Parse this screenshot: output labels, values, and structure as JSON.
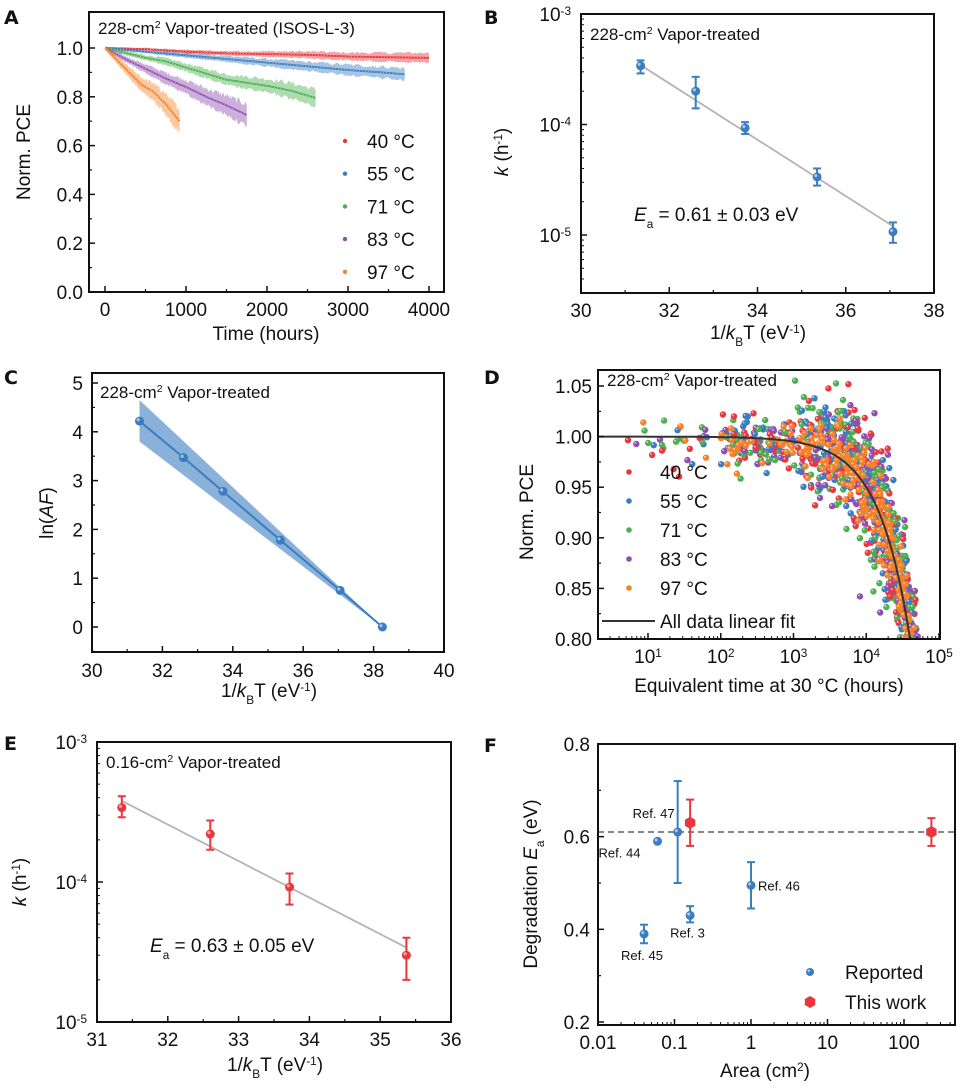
{
  "figure": {
    "colors": {
      "red": "#e8383d",
      "blue": "#3a7dc0",
      "green": "#4caf50",
      "purple": "#8e4fb0",
      "orange": "#f5822a",
      "fit_gray": "#b4b4b4",
      "fit_dark": "#333333",
      "band_blue": "#3a7dc0"
    }
  },
  "chart_data": [
    {
      "id": "A",
      "panel_letter": "A",
      "type": "line",
      "title": "228-cm² Vapor-treated (ISOS-L-3)",
      "title_parts": {
        "pre": "228-cm",
        "sup": "2",
        "post": " Vapor-treated (ISOS-L-3)"
      },
      "xlabel": "Time (hours)",
      "ylabel": "Norm. PCE",
      "xlim": [
        -200,
        4190
      ],
      "ylim": [
        0.0,
        1.15
      ],
      "xticks": [
        0,
        1000,
        2000,
        3000,
        4000
      ],
      "yticks": [
        0.0,
        0.2,
        0.4,
        0.6,
        0.8,
        1.0
      ],
      "ytick_labels": [
        "0.0",
        "0.2",
        "0.4",
        "0.6",
        "0.8",
        "1.0"
      ],
      "legend_position": "center-right",
      "series": [
        {
          "name": "40 °C",
          "color": "red",
          "x": [
            0,
            500,
            1000,
            1500,
            2000,
            2500,
            3000,
            3500,
            4000
          ],
          "y": [
            1.0,
            0.995,
            0.985,
            0.978,
            0.975,
            0.972,
            0.965,
            0.962,
            0.96
          ],
          "band": 0.02
        },
        {
          "name": "55 °C",
          "color": "blue",
          "x": [
            0,
            500,
            1000,
            1500,
            2000,
            2500,
            3000,
            3500,
            3700
          ],
          "y": [
            1.0,
            0.985,
            0.97,
            0.955,
            0.94,
            0.925,
            0.91,
            0.898,
            0.892
          ],
          "band": 0.025
        },
        {
          "name": "71 °C",
          "color": "green",
          "x": [
            0,
            250,
            500,
            750,
            1000,
            1250,
            1500,
            2000,
            2300,
            2600
          ],
          "y": [
            1.0,
            0.98,
            0.96,
            0.945,
            0.92,
            0.895,
            0.87,
            0.845,
            0.825,
            0.795
          ],
          "band": 0.035
        },
        {
          "name": "83 °C",
          "color": "purple",
          "x": [
            0,
            250,
            500,
            750,
            1000,
            1250,
            1500,
            1750
          ],
          "y": [
            1.0,
            0.955,
            0.915,
            0.875,
            0.84,
            0.8,
            0.765,
            0.725
          ],
          "band": 0.045
        },
        {
          "name": "97 °C",
          "color": "orange",
          "x": [
            0,
            150,
            300,
            450,
            600,
            750,
            920
          ],
          "y": [
            1.0,
            0.95,
            0.9,
            0.85,
            0.82,
            0.77,
            0.7
          ],
          "band": 0.05
        }
      ]
    },
    {
      "id": "B",
      "panel_letter": "B",
      "type": "scatter",
      "title": "228-cm² Vapor-treated",
      "title_parts": {
        "pre": "228-cm",
        "sup": "2",
        "post": " Vapor-treated"
      },
      "xlabel": "1/kBT (eV⁻¹)",
      "ylabel": "k (h⁻¹)",
      "yscale": "log",
      "xlim": [
        30,
        38
      ],
      "ylim": [
        3.3e-06,
        0.001
      ],
      "xticks": [
        30,
        32,
        34,
        36,
        38
      ],
      "yticks": [
        1e-05,
        0.0001,
        0.001
      ],
      "ytick_exponents": [
        "-5",
        "-4",
        "-3"
      ],
      "annotation": {
        "var": "E",
        "sub": "a",
        "text": " = 0.61 ± 0.03 eV"
      },
      "points": [
        {
          "x": 31.35,
          "y": 0.00034,
          "ylo": 0.00029,
          "yhi": 0.00038
        },
        {
          "x": 32.6,
          "y": 0.0002,
          "ylo": 0.00014,
          "yhi": 0.00027
        },
        {
          "x": 33.72,
          "y": 9.3e-05,
          "ylo": 8.2e-05,
          "yhi": 0.000105
        },
        {
          "x": 35.35,
          "y": 3.35e-05,
          "ylo": 2.8e-05,
          "yhi": 4e-05
        },
        {
          "x": 37.07,
          "y": 1.07e-05,
          "ylo": 8.5e-06,
          "yhi": 1.3e-05
        }
      ],
      "fit": {
        "x": [
          31.35,
          37.07
        ],
        "y": [
          0.000345,
          1.2e-05
        ]
      },
      "marker_color": "blue"
    },
    {
      "id": "C",
      "panel_letter": "C",
      "type": "line",
      "title": "228-cm² Vapor-treated",
      "title_parts": {
        "pre": "228-cm",
        "sup": "2",
        "post": " Vapor-treated"
      },
      "xlabel": "1/kBT (eV⁻¹)",
      "ylabel": "ln(AF)",
      "xlim": [
        30,
        40
      ],
      "ylim": [
        -0.5,
        5.2
      ],
      "xticks": [
        30,
        32,
        34,
        36,
        38,
        40
      ],
      "yticks": [
        0,
        1,
        2,
        3,
        4,
        5
      ],
      "points": [
        {
          "x": 31.35,
          "y": 4.22
        },
        {
          "x": 32.6,
          "y": 3.47
        },
        {
          "x": 33.72,
          "y": 2.78
        },
        {
          "x": 35.35,
          "y": 1.78
        },
        {
          "x": 37.05,
          "y": 0.75
        },
        {
          "x": 38.25,
          "y": 0.0
        }
      ],
      "band": {
        "x": [
          31.35,
          38.25
        ],
        "lo": [
          3.8,
          0.0
        ],
        "hi": [
          4.65,
          0.0
        ]
      },
      "marker_color": "blue"
    },
    {
      "id": "D",
      "panel_letter": "D",
      "type": "scatter",
      "title": "228-cm² Vapor-treated",
      "title_parts": {
        "pre": "228-cm",
        "sup": "2",
        "post": " Vapor-treated"
      },
      "xlabel": "Equivalent time at 30 °C (hours)",
      "ylabel": "Norm. PCE",
      "xscale": "log",
      "xlim": [
        2,
        100000
      ],
      "ylim": [
        0.8,
        1.065
      ],
      "xticks": [
        10,
        100,
        1000,
        10000,
        100000
      ],
      "xtick_exponents": [
        "1",
        "2",
        "3",
        "4",
        "5"
      ],
      "yticks": [
        0.8,
        0.85,
        0.9,
        0.95,
        1.0,
        1.05
      ],
      "ytick_labels": [
        "0.80",
        "0.85",
        "0.90",
        "0.95",
        "1.00",
        "1.05"
      ],
      "legend_position": "center-left",
      "series": [
        {
          "name": "40 °C",
          "color": "red"
        },
        {
          "name": "55 °C",
          "color": "blue"
        },
        {
          "name": "71 °C",
          "color": "green"
        },
        {
          "name": "83 °C",
          "color": "purple"
        },
        {
          "name": "97 °C",
          "color": "orange"
        }
      ],
      "fit": {
        "name": "All data linear fit",
        "model": "1 - slope * t",
        "slope": 5e-06
      },
      "scatter_description": "Points cluster near 1.0 from 10^2–10^3 h then fall along the fit to 0.80 near 4×10^4 h; spread ~±0.05."
    },
    {
      "id": "E",
      "panel_letter": "E",
      "type": "scatter",
      "title": "0.16-cm² Vapor-treated",
      "title_parts": {
        "pre": "0.16-cm",
        "sup": "2",
        "post": " Vapor-treated"
      },
      "xlabel": "1/kBT (eV⁻¹)",
      "ylabel": "k (h⁻¹)",
      "yscale": "log",
      "xlim": [
        31,
        36
      ],
      "ylim": [
        1e-05,
        0.001
      ],
      "xticks": [
        31,
        32,
        33,
        34,
        35,
        36
      ],
      "yticks": [
        1e-05,
        0.0001,
        0.001
      ],
      "ytick_exponents": [
        "-5",
        "-4",
        "-3"
      ],
      "annotation": {
        "var": "E",
        "sub": "a",
        "text": " = 0.63 ± 0.05 eV"
      },
      "points": [
        {
          "x": 31.35,
          "y": 0.00034,
          "ylo": 0.00029,
          "yhi": 0.00041
        },
        {
          "x": 32.6,
          "y": 0.00022,
          "ylo": 0.00017,
          "yhi": 0.000275
        },
        {
          "x": 33.72,
          "y": 9.2e-05,
          "ylo": 6.9e-05,
          "yhi": 0.000115
        },
        {
          "x": 35.37,
          "y": 3e-05,
          "ylo": 2e-05,
          "yhi": 4e-05
        }
      ],
      "fit": {
        "x": [
          31.35,
          35.37
        ],
        "y": [
          0.00038,
          3.4e-05
        ]
      },
      "marker_color": "red"
    },
    {
      "id": "F",
      "panel_letter": "F",
      "type": "scatter",
      "title": "",
      "xlabel": "Area (cm²)",
      "ylabel": "Degradation Ea (eV)",
      "xscale": "log",
      "xlim": [
        0.01,
        450
      ],
      "ylim": [
        0.2,
        0.8
      ],
      "xticks": [
        0.01,
        0.1,
        1,
        10,
        100
      ],
      "xtick_labels": [
        "0.01",
        "0.1",
        "1",
        "10",
        "100"
      ],
      "yticks": [
        0.2,
        0.4,
        0.6,
        0.8
      ],
      "ytick_labels": [
        "0.2",
        "0.4",
        "0.6",
        "0.8"
      ],
      "reference_line": {
        "y": 0.61,
        "style": "dashed"
      },
      "legend_position": "bottom-right",
      "series": [
        {
          "name": "Reported",
          "color": "blue",
          "marker": "circle",
          "points": [
            {
              "label": "Ref. 47",
              "x": 0.11,
              "y": 0.61,
              "ylo": 0.5,
              "yhi": 0.72
            },
            {
              "label": "Ref. 44",
              "x": 0.06,
              "y": 0.59
            },
            {
              "label": "Ref. 46",
              "x": 1.0,
              "y": 0.495,
              "ylo": 0.445,
              "yhi": 0.545
            },
            {
              "label": "Ref. 3",
              "x": 0.16,
              "y": 0.43,
              "ylo": 0.415,
              "yhi": 0.45
            },
            {
              "label": "Ref. 45",
              "x": 0.04,
              "y": 0.39,
              "ylo": 0.37,
              "yhi": 0.41
            }
          ]
        },
        {
          "name": "This work",
          "color": "red",
          "marker": "hexagon",
          "points": [
            {
              "x": 0.16,
              "y": 0.63,
              "ylo": 0.58,
              "yhi": 0.68
            },
            {
              "x": 228,
              "y": 0.61,
              "ylo": 0.58,
              "yhi": 0.64
            }
          ]
        }
      ]
    }
  ]
}
